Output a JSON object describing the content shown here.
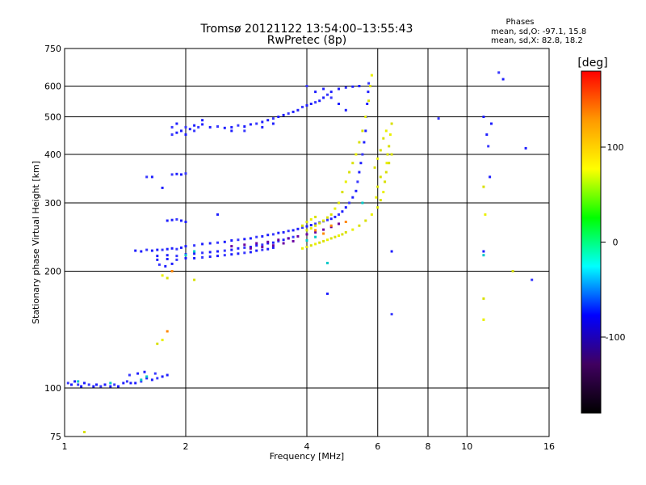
{
  "chart_data": {
    "type": "scatter",
    "title": "Tromsø 20121122 13:54:00–13:55:43",
    "subtitle": "RwPretec (8p)",
    "xlabel": "Frequency [MHz]",
    "ylabel": "Stationary phase Virtual Height [km]",
    "x_scale": "log",
    "y_scale": "log",
    "xlim": [
      1,
      16
    ],
    "ylim": [
      75,
      750
    ],
    "x_ticks": [
      1,
      2,
      4,
      6,
      8,
      10,
      16
    ],
    "y_ticks": [
      75,
      100,
      200,
      300,
      400,
      500,
      600,
      750
    ],
    "grid": true,
    "stats": {
      "heading": "Phases",
      "o_line": "mean, sd,O: -97.1, 15.8",
      "x_line": "mean, sd,X:  82.8, 18.2"
    },
    "colorbar": {
      "label": "[deg]",
      "range": [
        -180,
        180
      ],
      "ticks": [
        100,
        0,
        -100
      ],
      "colors": [
        "#ff0000",
        "#ff9900",
        "#ffff00",
        "#00ff00",
        "#00ffff",
        "#0000ff",
        "#400060",
        "#000000"
      ]
    },
    "series": [
      {
        "color": "#1e1eff",
        "alt_color": "#3838ff",
        "points": [
          [
            1.02,
            103
          ],
          [
            1.04,
            102
          ],
          [
            1.06,
            104
          ],
          [
            1.08,
            102
          ],
          [
            1.1,
            101
          ],
          [
            1.12,
            103
          ],
          [
            1.15,
            102
          ],
          [
            1.18,
            101
          ],
          [
            1.2,
            102
          ],
          [
            1.23,
            101
          ],
          [
            1.26,
            102
          ],
          [
            1.3,
            101
          ],
          [
            1.33,
            102
          ],
          [
            1.36,
            101
          ],
          [
            1.4,
            103
          ],
          [
            1.43,
            104
          ],
          [
            1.46,
            103
          ],
          [
            1.5,
            103
          ],
          [
            1.55,
            104
          ],
          [
            1.6,
            106
          ],
          [
            1.65,
            105
          ],
          [
            1.7,
            106
          ],
          [
            1.75,
            107
          ],
          [
            1.8,
            108
          ],
          [
            1.45,
            108
          ],
          [
            1.52,
            109
          ],
          [
            1.58,
            110
          ],
          [
            1.68,
            109
          ],
          [
            1.5,
            226
          ],
          [
            1.55,
            225
          ],
          [
            1.6,
            227
          ],
          [
            1.65,
            226
          ],
          [
            1.7,
            227
          ],
          [
            1.75,
            227
          ],
          [
            1.8,
            228
          ],
          [
            1.85,
            229
          ],
          [
            1.9,
            228
          ],
          [
            1.95,
            230
          ],
          [
            2.0,
            232
          ],
          [
            2.1,
            233
          ],
          [
            2.2,
            235
          ],
          [
            2.3,
            236
          ],
          [
            2.4,
            237
          ],
          [
            2.5,
            238
          ],
          [
            2.6,
            240
          ],
          [
            2.7,
            241
          ],
          [
            2.8,
            242
          ],
          [
            2.9,
            243
          ],
          [
            3.0,
            245
          ],
          [
            3.1,
            246
          ],
          [
            3.2,
            248
          ],
          [
            3.3,
            249
          ],
          [
            3.4,
            251
          ],
          [
            3.5,
            252
          ],
          [
            3.6,
            254
          ],
          [
            3.7,
            255
          ],
          [
            3.8,
            257
          ],
          [
            3.9,
            259
          ],
          [
            4.0,
            261
          ],
          [
            4.1,
            263
          ],
          [
            4.2,
            265
          ],
          [
            4.3,
            267
          ],
          [
            4.4,
            269
          ],
          [
            4.5,
            271
          ],
          [
            4.6,
            273
          ],
          [
            4.7,
            276
          ],
          [
            4.8,
            280
          ],
          [
            4.9,
            285
          ],
          [
            5.0,
            292
          ],
          [
            5.1,
            300
          ],
          [
            5.2,
            310
          ],
          [
            5.3,
            322
          ],
          [
            5.35,
            340
          ],
          [
            5.4,
            360
          ],
          [
            5.45,
            380
          ],
          [
            5.5,
            400
          ],
          [
            5.55,
            430
          ],
          [
            5.6,
            460
          ],
          [
            5.62,
            500
          ],
          [
            5.65,
            540
          ],
          [
            5.68,
            580
          ],
          [
            5.7,
            610
          ],
          [
            1.7,
            219
          ],
          [
            1.8,
            220
          ],
          [
            1.9,
            219
          ],
          [
            2.0,
            221
          ],
          [
            2.1,
            222
          ],
          [
            2.2,
            223
          ],
          [
            2.3,
            224
          ],
          [
            2.4,
            225
          ],
          [
            2.5,
            226
          ],
          [
            2.6,
            227
          ],
          [
            2.7,
            229
          ],
          [
            2.8,
            230
          ],
          [
            2.9,
            231
          ],
          [
            3.0,
            233
          ],
          [
            3.1,
            234
          ],
          [
            3.2,
            236
          ],
          [
            3.3,
            237
          ],
          [
            3.4,
            239
          ],
          [
            3.5,
            241
          ],
          [
            3.6,
            243
          ],
          [
            3.7,
            245
          ],
          [
            1.7,
            214
          ],
          [
            1.8,
            215
          ],
          [
            1.9,
            214
          ],
          [
            2.0,
            216
          ],
          [
            2.1,
            216
          ],
          [
            2.2,
            217
          ],
          [
            2.3,
            218
          ],
          [
            2.4,
            219
          ],
          [
            2.5,
            220
          ],
          [
            2.6,
            221
          ],
          [
            2.7,
            222
          ],
          [
            2.8,
            223
          ],
          [
            2.9,
            224
          ],
          [
            3.0,
            226
          ],
          [
            3.1,
            227
          ],
          [
            3.2,
            228
          ],
          [
            3.3,
            230
          ],
          [
            1.72,
            208
          ],
          [
            1.78,
            206
          ],
          [
            1.85,
            209
          ],
          [
            1.85,
            450
          ],
          [
            1.9,
            455
          ],
          [
            1.95,
            460
          ],
          [
            2.0,
            470
          ],
          [
            2.05,
            465
          ],
          [
            2.1,
            475
          ],
          [
            2.15,
            470
          ],
          [
            2.2,
            478
          ],
          [
            2.3,
            470
          ],
          [
            2.4,
            472
          ],
          [
            2.5,
            468
          ],
          [
            2.6,
            470
          ],
          [
            2.7,
            475
          ],
          [
            2.8,
            472
          ],
          [
            2.9,
            478
          ],
          [
            3.0,
            480
          ],
          [
            3.1,
            485
          ],
          [
            3.2,
            490
          ],
          [
            3.3,
            495
          ],
          [
            3.4,
            500
          ],
          [
            3.5,
            505
          ],
          [
            3.6,
            510
          ],
          [
            3.7,
            515
          ],
          [
            3.8,
            520
          ],
          [
            3.9,
            530
          ],
          [
            4.0,
            535
          ],
          [
            4.1,
            540
          ],
          [
            4.2,
            545
          ],
          [
            4.3,
            550
          ],
          [
            4.4,
            560
          ],
          [
            4.5,
            570
          ],
          [
            4.6,
            580
          ],
          [
            4.8,
            590
          ],
          [
            5.0,
            595
          ],
          [
            5.2,
            598
          ],
          [
            5.4,
            600
          ],
          [
            1.85,
            470
          ],
          [
            1.9,
            480
          ],
          [
            2.0,
            450
          ],
          [
            2.1,
            460
          ],
          [
            2.2,
            490
          ],
          [
            2.6,
            460
          ],
          [
            2.8,
            460
          ],
          [
            3.1,
            470
          ],
          [
            3.3,
            480
          ],
          [
            1.6,
            350
          ],
          [
            1.65,
            350
          ],
          [
            1.75,
            328
          ],
          [
            1.85,
            355
          ],
          [
            1.9,
            356
          ],
          [
            1.95,
            355
          ],
          [
            2.0,
            357
          ],
          [
            1.8,
            270
          ],
          [
            1.85,
            271
          ],
          [
            1.9,
            272
          ],
          [
            1.95,
            270
          ],
          [
            2.0,
            268
          ],
          [
            8.5,
            495
          ],
          [
            11.0,
            500
          ],
          [
            11.2,
            450
          ],
          [
            11.3,
            420
          ],
          [
            11.4,
            350
          ],
          [
            11.5,
            480
          ],
          [
            12.0,
            650
          ],
          [
            12.3,
            625
          ],
          [
            14.0,
            415
          ],
          [
            14.5,
            190
          ],
          [
            11.0,
            225
          ],
          [
            6.5,
            225
          ],
          [
            6.5,
            155
          ],
          [
            4.5,
            175
          ],
          [
            2.4,
            280
          ],
          [
            4.0,
            600
          ],
          [
            4.2,
            580
          ],
          [
            4.4,
            590
          ],
          [
            4.6,
            560
          ],
          [
            4.8,
            540
          ],
          [
            5.0,
            520
          ]
        ]
      },
      {
        "color": "#6a00a0",
        "points": [
          [
            2.6,
            232
          ],
          [
            2.8,
            234
          ],
          [
            3.0,
            236
          ],
          [
            3.2,
            238
          ],
          [
            3.4,
            241
          ],
          [
            3.6,
            243
          ],
          [
            3.8,
            246
          ],
          [
            4.0,
            249
          ],
          [
            4.2,
            252
          ],
          [
            4.4,
            256
          ],
          [
            4.6,
            260
          ],
          [
            4.8,
            265
          ],
          [
            2.9,
            229
          ],
          [
            3.1,
            231
          ],
          [
            3.3,
            233
          ],
          [
            3.5,
            236
          ],
          [
            3.7,
            239
          ]
        ]
      },
      {
        "color": "#d8e000",
        "alt_color": "#eaf000",
        "points": [
          [
            3.9,
            229
          ],
          [
            4.0,
            231
          ],
          [
            4.1,
            233
          ],
          [
            4.2,
            235
          ],
          [
            4.3,
            237
          ],
          [
            4.4,
            239
          ],
          [
            4.5,
            241
          ],
          [
            4.6,
            243
          ],
          [
            4.7,
            245
          ],
          [
            4.8,
            247
          ],
          [
            4.9,
            249
          ],
          [
            5.0,
            252
          ],
          [
            5.2,
            256
          ],
          [
            5.4,
            262
          ],
          [
            5.6,
            270
          ],
          [
            5.8,
            280
          ],
          [
            6.0,
            292
          ],
          [
            6.1,
            305
          ],
          [
            6.2,
            320
          ],
          [
            6.25,
            340
          ],
          [
            6.3,
            360
          ],
          [
            6.32,
            380
          ],
          [
            6.35,
            400
          ],
          [
            6.4,
            420
          ],
          [
            6.45,
            450
          ],
          [
            6.5,
            480
          ],
          [
            4.0,
            255
          ],
          [
            4.1,
            258
          ],
          [
            4.2,
            262
          ],
          [
            4.3,
            266
          ],
          [
            4.4,
            270
          ],
          [
            4.5,
            275
          ],
          [
            4.6,
            280
          ],
          [
            4.7,
            290
          ],
          [
            4.8,
            300
          ],
          [
            4.9,
            320
          ],
          [
            5.0,
            340
          ],
          [
            5.1,
            360
          ],
          [
            5.2,
            380
          ],
          [
            5.3,
            400
          ],
          [
            5.4,
            430
          ],
          [
            5.5,
            460
          ],
          [
            5.6,
            500
          ],
          [
            5.7,
            550
          ],
          [
            5.75,
            600
          ],
          [
            5.8,
            640
          ],
          [
            3.9,
            262
          ],
          [
            4.0,
            268
          ],
          [
            4.1,
            272
          ],
          [
            4.2,
            276
          ],
          [
            5.9,
            370
          ],
          [
            6.0,
            390
          ],
          [
            6.1,
            410
          ],
          [
            6.2,
            440
          ],
          [
            6.3,
            460
          ],
          [
            6.0,
            330
          ],
          [
            6.1,
            350
          ],
          [
            5.95,
            310
          ],
          [
            6.4,
            380
          ],
          [
            6.5,
            400
          ],
          [
            1.75,
            195
          ],
          [
            1.8,
            192
          ],
          [
            1.7,
            130
          ],
          [
            1.75,
            133
          ],
          [
            2.1,
            190
          ],
          [
            1.12,
            77
          ],
          [
            11.0,
            150
          ],
          [
            11.0,
            170
          ],
          [
            11.0,
            330
          ],
          [
            11.1,
            280
          ],
          [
            13.0,
            200
          ]
        ]
      },
      {
        "color": "#00c8c8",
        "points": [
          [
            1.08,
            104
          ],
          [
            1.3,
            103
          ],
          [
            1.55,
            105
          ],
          [
            1.6,
            107
          ],
          [
            2.0,
            220
          ],
          [
            2.1,
            225
          ],
          [
            4.0,
            240
          ],
          [
            4.2,
            245
          ],
          [
            4.5,
            210
          ],
          [
            5.5,
            300
          ],
          [
            11.0,
            220
          ]
        ]
      },
      {
        "color": "#ff8800",
        "points": [
          [
            4.2,
            255
          ],
          [
            4.4,
            250
          ],
          [
            4.6,
            262
          ],
          [
            5.0,
            268
          ],
          [
            1.85,
            200
          ],
          [
            1.8,
            140
          ]
        ]
      }
    ]
  }
}
